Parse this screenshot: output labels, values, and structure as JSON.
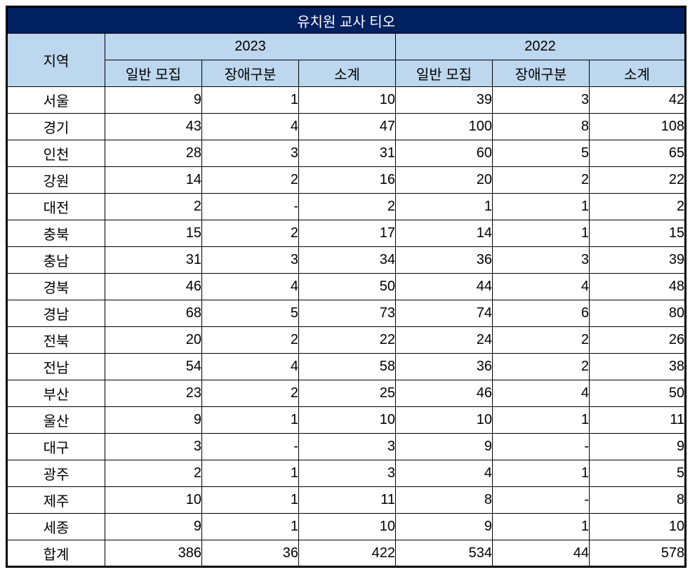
{
  "title": "유치원 교사 티오",
  "colors": {
    "title_bg": "#002060",
    "title_text": "#ffffff",
    "header_bg": "#BDD7EE",
    "border": "#000000"
  },
  "table": {
    "region_header": "지역",
    "year_groups": [
      {
        "year": "2023",
        "cols": [
          "일반 모집",
          "장애구분",
          "소계"
        ]
      },
      {
        "year": "2022",
        "cols": [
          "일반 모집",
          "장애구분",
          "소계"
        ]
      }
    ],
    "rows": [
      {
        "region": "서울",
        "values": [
          "9",
          "1",
          "10",
          "39",
          "3",
          "42"
        ],
        "is_total": false
      },
      {
        "region": "경기",
        "values": [
          "43",
          "4",
          "47",
          "100",
          "8",
          "108"
        ],
        "is_total": false
      },
      {
        "region": "인천",
        "values": [
          "28",
          "3",
          "31",
          "60",
          "5",
          "65"
        ],
        "is_total": false
      },
      {
        "region": "강원",
        "values": [
          "14",
          "2",
          "16",
          "20",
          "2",
          "22"
        ],
        "is_total": false
      },
      {
        "region": "대전",
        "values": [
          "2",
          "-",
          "2",
          "1",
          "1",
          "2"
        ],
        "is_total": false
      },
      {
        "region": "충북",
        "values": [
          "15",
          "2",
          "17",
          "14",
          "1",
          "15"
        ],
        "is_total": false
      },
      {
        "region": "충남",
        "values": [
          "31",
          "3",
          "34",
          "36",
          "3",
          "39"
        ],
        "is_total": false
      },
      {
        "region": "경북",
        "values": [
          "46",
          "4",
          "50",
          "44",
          "4",
          "48"
        ],
        "is_total": false
      },
      {
        "region": "경남",
        "values": [
          "68",
          "5",
          "73",
          "74",
          "6",
          "80"
        ],
        "is_total": false
      },
      {
        "region": "전북",
        "values": [
          "20",
          "2",
          "22",
          "24",
          "2",
          "26"
        ],
        "is_total": false
      },
      {
        "region": "전남",
        "values": [
          "54",
          "4",
          "58",
          "36",
          "2",
          "38"
        ],
        "is_total": false
      },
      {
        "region": "부산",
        "values": [
          "23",
          "2",
          "25",
          "46",
          "4",
          "50"
        ],
        "is_total": false
      },
      {
        "region": "울산",
        "values": [
          "9",
          "1",
          "10",
          "10",
          "1",
          "11"
        ],
        "is_total": false
      },
      {
        "region": "대구",
        "values": [
          "3",
          "-",
          "3",
          "9",
          "-",
          "9"
        ],
        "is_total": false
      },
      {
        "region": "광주",
        "values": [
          "2",
          "1",
          "3",
          "4",
          "1",
          "5"
        ],
        "is_total": false
      },
      {
        "region": "제주",
        "values": [
          "10",
          "1",
          "11",
          "8",
          "-",
          "8"
        ],
        "is_total": false
      },
      {
        "region": "세종",
        "values": [
          "9",
          "1",
          "10",
          "9",
          "1",
          "10"
        ],
        "is_total": false
      },
      {
        "region": "합계",
        "values": [
          "386",
          "36",
          "422",
          "534",
          "44",
          "578"
        ],
        "is_total": true
      }
    ]
  }
}
